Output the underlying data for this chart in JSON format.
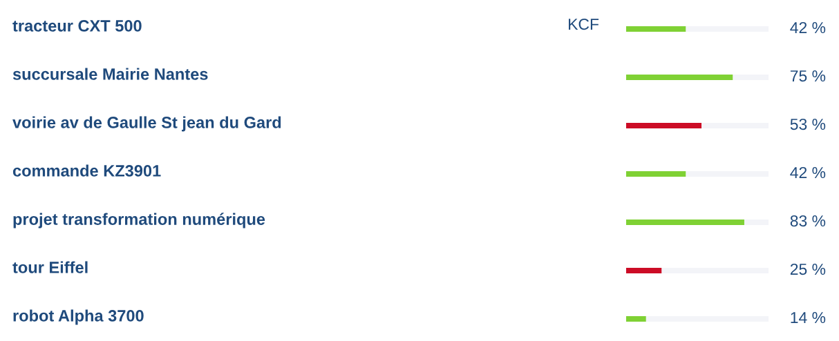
{
  "chart_data": {
    "type": "bar",
    "orientation": "horizontal",
    "stacked": true,
    "categories": [
      "tracteur CXT 500",
      "succursale Mairie Nantes",
      "voirie av de Gaulle St jean du Gard",
      "commande KZ3901",
      "projet transformation numérique",
      "tour Eiffel",
      "robot Alpha 3700"
    ],
    "series": [
      {
        "colors": [
          "#7fd134",
          "#7fd134",
          "#cc0c26",
          "#7fd134",
          "#7fd134",
          "#cc0c26",
          "#7fd134"
        ],
        "values": [
          42,
          75,
          53,
          42,
          83,
          25,
          14
        ],
        "value_labels": [
          "42 %",
          "75 %",
          "53 %",
          "42 %",
          "83 %",
          "25 %",
          "14 %"
        ]
      },
      {
        "color": "#f3f4f8",
        "values": [
          58,
          25,
          47,
          58,
          17,
          75,
          86
        ]
      }
    ],
    "xlim": [
      0,
      100
    ],
    "tick_labels": "y",
    "annotations": [
      "KCF"
    ]
  }
}
